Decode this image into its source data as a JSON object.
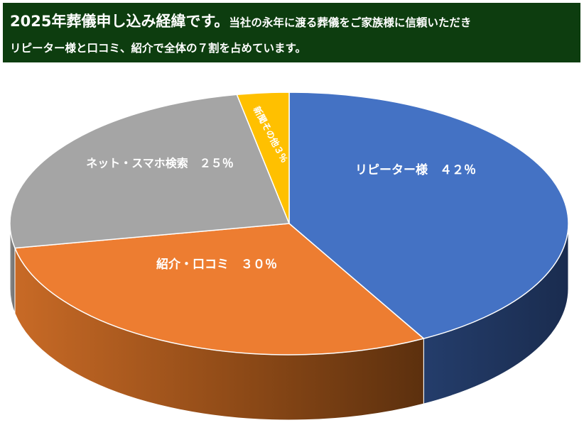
{
  "header": {
    "headline": "2025年葬儀申し込み経緯です。",
    "subline1": "当社の永年に渡る葬儀をご家族様に信頼いただき",
    "subline2": "リピーター様と口コミ、紹介で全体の７割を占めています。"
  },
  "colors": {
    "banner_bg": "#0d3d0f",
    "repeater": "#4472c4",
    "referral": "#ed7d31",
    "internet": "#a5a5a5",
    "other": "#ffc000"
  },
  "chart_data": {
    "type": "pie",
    "style": "3d-pie",
    "title": "2025年葬儀申し込み経緯",
    "slices": [
      {
        "name": "リピーター様",
        "value": 42,
        "label": "リピーター様　４２％",
        "color": "#4472c4"
      },
      {
        "name": "紹介・口コミ",
        "value": 30,
        "label": "紹介・口コミ　３０％",
        "color": "#ed7d31"
      },
      {
        "name": "ネット・スマホ検索",
        "value": 25,
        "label": "ネット・スマホ検索　２５％",
        "color": "#a5a5a5"
      },
      {
        "name": "新聞その他",
        "value": 3,
        "label": "新聞その他３％",
        "color": "#ffc000"
      }
    ]
  }
}
